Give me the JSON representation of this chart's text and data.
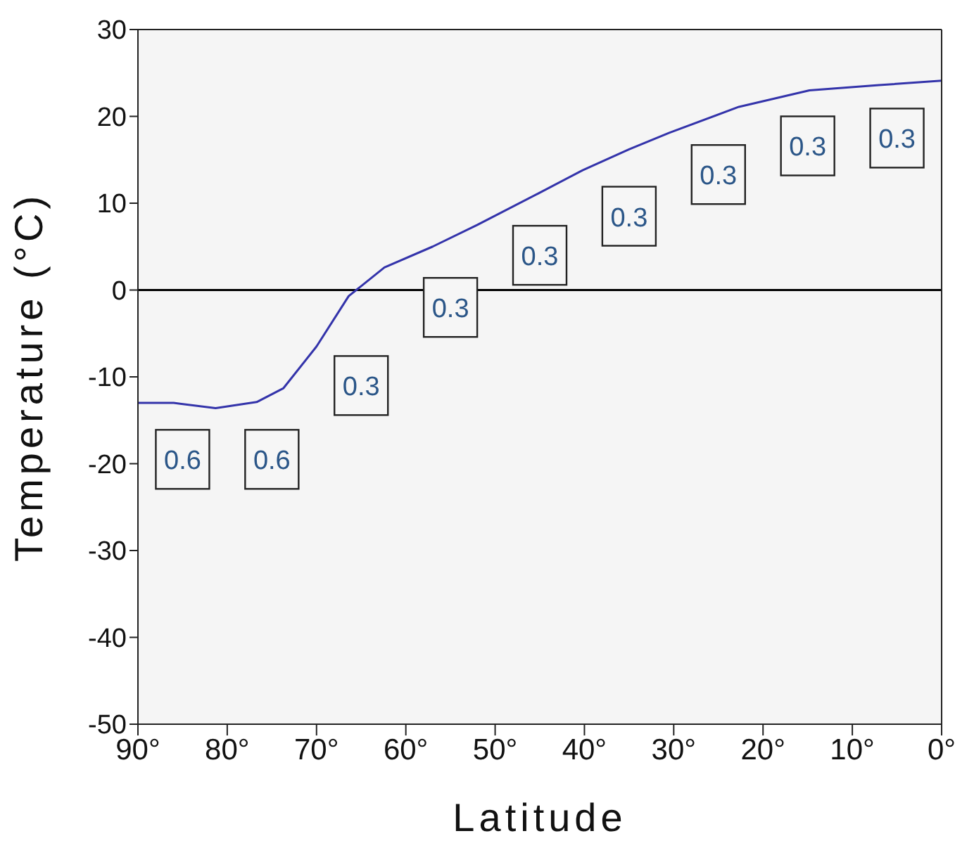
{
  "chart_data": {
    "type": "line",
    "xlabel": "Latitude",
    "ylabel": "Temperature (°C)",
    "x": [
      90,
      86,
      81.3,
      76.7,
      73.7,
      70,
      66.4,
      62.4,
      57,
      52,
      45.2,
      40.2,
      35,
      30.5,
      22.7,
      14.8,
      7,
      0
    ],
    "series": [
      {
        "color": "#3333aa",
        "values": [
          -13,
          -13,
          -13.6,
          -12.9,
          -11.3,
          -6.5,
          -0.7,
          2.6,
          5,
          7.5,
          11.1,
          13.8,
          16.2,
          18.1,
          21.1,
          23,
          23.6,
          24.1
        ]
      }
    ],
    "xlim": [
      90,
      0
    ],
    "xticks": [
      {
        "value": 90,
        "label": "90°"
      },
      {
        "value": 80,
        "label": "80°"
      },
      {
        "value": 70,
        "label": "70°"
      },
      {
        "value": 60,
        "label": "60°"
      },
      {
        "value": 50,
        "label": "50°"
      },
      {
        "value": 40,
        "label": "40°"
      },
      {
        "value": 30,
        "label": "30°"
      },
      {
        "value": 20,
        "label": "20°"
      },
      {
        "value": 10,
        "label": "10°"
      },
      {
        "value": 0,
        "label": "0°"
      }
    ],
    "ylim": [
      -50,
      30
    ],
    "yticks": [
      -50,
      -40,
      -30,
      -20,
      -10,
      0,
      10,
      20,
      30
    ],
    "ref_lines": [
      {
        "axis": "y",
        "value": 0,
        "color": "#000000"
      }
    ],
    "annotations": [
      {
        "text": "0.6",
        "x": 85,
        "y": -19.5
      },
      {
        "text": "0.6",
        "x": 75,
        "y": -19.5
      },
      {
        "text": "0.3",
        "x": 65,
        "y": -11
      },
      {
        "text": "0.3",
        "x": 55,
        "y": -2
      },
      {
        "text": "0.3",
        "x": 45,
        "y": 4
      },
      {
        "text": "0.3",
        "x": 35,
        "y": 8.5
      },
      {
        "text": "0.3",
        "x": 25,
        "y": 13.3
      },
      {
        "text": "0.3",
        "x": 15,
        "y": 16.6
      },
      {
        "text": "0.3",
        "x": 5,
        "y": 17.5
      }
    ],
    "grid": false,
    "marker": "none",
    "line_style": "solid"
  }
}
